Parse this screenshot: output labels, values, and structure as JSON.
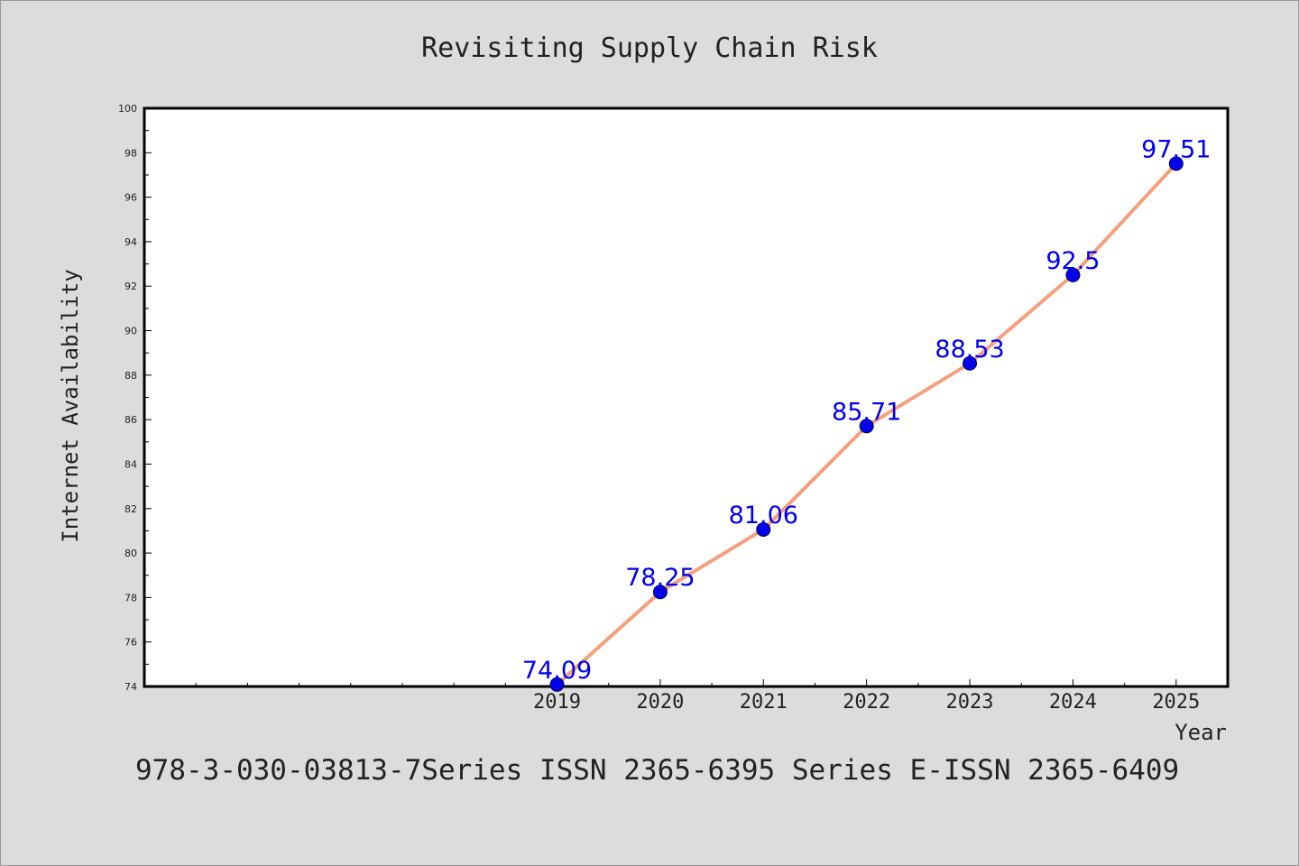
{
  "title": "Revisiting Supply Chain Risk",
  "xlabel": "Year",
  "ylabel": "Internet Availability",
  "footer_text": "978-3-030-03813-7Series ISSN 2365-6395 Series E-ISSN 2365-6409",
  "colors": {
    "background": "#dcdcdc",
    "plot_background": "#ffffff",
    "line": "#f4a07c",
    "marker": "#0000ee",
    "label": "#0000ee",
    "text": "#222222"
  },
  "chart_data": {
    "type": "line",
    "title": "Revisiting Supply Chain Risk",
    "xlabel": "Year",
    "ylabel": "Internet Availability",
    "x": [
      2019,
      2020,
      2021,
      2022,
      2023,
      2024,
      2025
    ],
    "y": [
      74.09,
      78.25,
      81.06,
      85.71,
      88.53,
      92.5,
      97.51
    ],
    "data_labels": [
      "74.09",
      "78.25",
      "81.06",
      "85.71",
      "88.53",
      "92.5",
      "97.51"
    ],
    "xlim": [
      2015,
      2025.5
    ],
    "ylim": [
      74,
      100
    ],
    "x_ticks": [
      2019,
      2020,
      2021,
      2022,
      2023,
      2024,
      2025
    ],
    "x_tick_labels": [
      "2019",
      "2020",
      "2021",
      "2022",
      "2023",
      "2024",
      "2025"
    ],
    "y_ticks": [
      74,
      76,
      78,
      80,
      82,
      84,
      86,
      88,
      90,
      92,
      94,
      96,
      98,
      100
    ],
    "y_tick_labels": [
      "74",
      "76",
      "78",
      "80",
      "82",
      "84",
      "86",
      "88",
      "90",
      "92",
      "94",
      "96",
      "98",
      "100"
    ],
    "grid": false,
    "legend": "none"
  }
}
